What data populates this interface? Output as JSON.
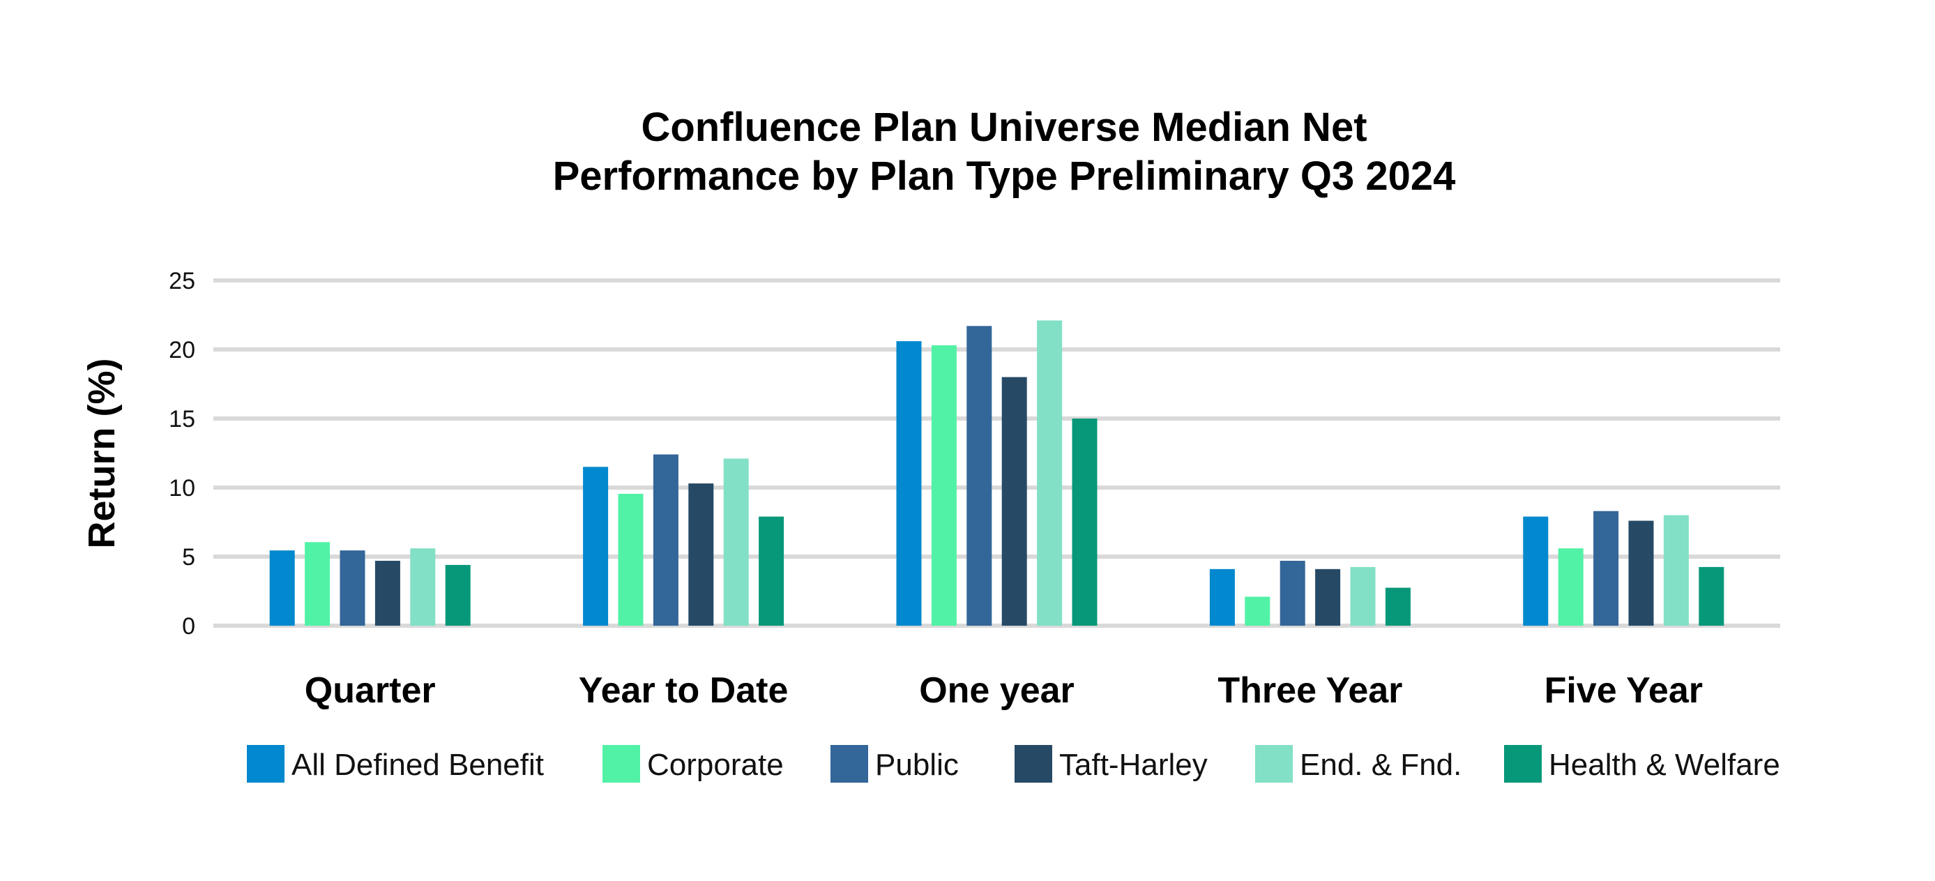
{
  "chart_data": {
    "type": "bar",
    "title": [
      "Confluence Plan Universe Median Net",
      "Performance by Plan Type Preliminary Q3 2024"
    ],
    "xlabel": "",
    "ylabel": "Return (%)",
    "ylim": [
      0,
      25
    ],
    "yticks": [
      0,
      5,
      10,
      15,
      20,
      25
    ],
    "grid": true,
    "legend_position": "bottom",
    "categories": [
      "Quarter",
      "Year to Date",
      "One year",
      "Three Year",
      "Five Year"
    ],
    "series": [
      {
        "name": "All Defined Benefit",
        "color": "#0288CE",
        "values": [
          5.45,
          11.5,
          20.6,
          4.1,
          7.9
        ]
      },
      {
        "name": "Corporate",
        "color": "#52F2A6",
        "values": [
          6.05,
          9.55,
          20.3,
          2.1,
          5.6
        ]
      },
      {
        "name": "Public",
        "color": "#336699",
        "values": [
          5.45,
          12.4,
          21.7,
          4.7,
          8.3
        ]
      },
      {
        "name": "Taft-Harley",
        "color": "#264A66",
        "values": [
          4.7,
          10.3,
          18.0,
          4.1,
          7.6
        ]
      },
      {
        "name": "End. & Fnd.",
        "color": "#82E0C6",
        "values": [
          5.6,
          12.1,
          22.1,
          4.25,
          8.0
        ]
      },
      {
        "name": "Health & Welfare",
        "color": "#07987A",
        "values": [
          4.4,
          7.9,
          15.0,
          2.75,
          4.25
        ]
      }
    ]
  }
}
